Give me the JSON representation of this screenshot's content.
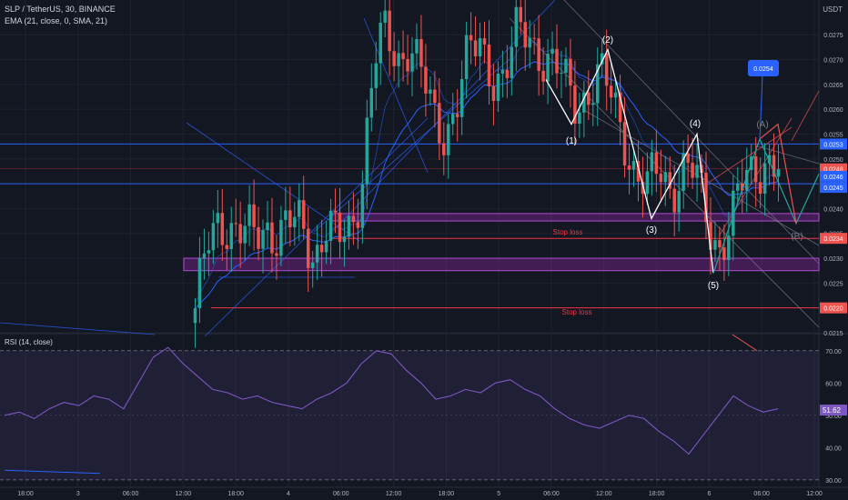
{
  "header": {
    "symbol": "SLP / TetherUS, 30, BINANCE",
    "indicator": "EMA (21, close, 0, SMA, 21)",
    "currency": "USDT"
  },
  "rsi_pane": {
    "label": "RSI (14, close)",
    "value_badge": "51.62",
    "levels": [
      "70.00",
      "60.00",
      "50.00",
      "40.00",
      "30.00"
    ]
  },
  "annotations": {
    "wave_labels": [
      "(1)",
      "(2)",
      "(3)",
      "(4)",
      "(5)",
      "(A)",
      "(B)"
    ],
    "stop_loss_1": "Stop loss",
    "stop_loss_2": "Stop loss",
    "target_badge": "0.0254"
  },
  "colors": {
    "background": "#131722",
    "up": "#26a69a",
    "down": "#ef5350",
    "ema": "#2962ff",
    "zone": "#9c27b0",
    "rsi": "#7e57c2",
    "horizontal_line": "#2962ff",
    "stop_line": "#f23645"
  },
  "chart_data": [
    {
      "type": "candlestick",
      "title": "SLP / TetherUS, 30, BINANCE",
      "ylabel": "USDT",
      "ylim": [
        0.0215,
        0.0282
      ],
      "y_ticks": [
        "0.0275",
        "0.0270",
        "0.0265",
        "0.0260",
        "0.0255",
        "0.0250",
        "0.0245",
        "0.0240",
        "0.0235",
        "0.0230",
        "0.0225",
        "0.0215"
      ],
      "x_ticks": [
        "18:00",
        "3",
        "06:00",
        "12:00",
        "18:00",
        "4",
        "06:00",
        "12:00",
        "18:00",
        "5",
        "06:00",
        "12:00",
        "18:00",
        "6",
        "06:00",
        "12:00"
      ],
      "price_badges": [
        "0.0253",
        "0.0248",
        "0.0246",
        "0.0245",
        "0.0234",
        "0.0220"
      ],
      "levels": {
        "resistance": 0.0253,
        "support": 0.0245,
        "stop_loss_1": 0.0234,
        "stop_loss_2": 0.022
      },
      "zones": [
        [
          0.02375,
          0.0239
        ],
        [
          0.02275,
          0.023
        ]
      ],
      "close_path": [
        0.0217,
        0.0233,
        0.024,
        0.0235,
        0.0233,
        0.0236,
        0.0238,
        0.0233,
        0.0236,
        0.0238,
        0.0231,
        0.0235,
        0.0233,
        0.0237,
        0.0246,
        0.0268,
        0.0275,
        0.0271,
        0.0274,
        0.0266,
        0.0258,
        0.0256,
        0.0262,
        0.027,
        0.0273,
        0.0268,
        0.0266,
        0.0274,
        0.0276,
        0.0272,
        0.0268,
        0.0265,
        0.0262,
        0.0264,
        0.0266,
        0.0262,
        0.0256,
        0.0247,
        0.0243,
        0.0248,
        0.0245,
        0.0248,
        0.0246,
        0.0238,
        0.0233,
        0.0237,
        0.0244,
        0.0248,
        0.0251,
        0.0248
      ],
      "wave_points": [
        {
          "label": "(1)",
          "value": 0.0257
        },
        {
          "label": "(2)",
          "value": 0.0272
        },
        {
          "label": "(3)",
          "value": 0.0238
        },
        {
          "label": "(4)",
          "value": 0.0255
        },
        {
          "label": "(5)",
          "value": 0.0227
        }
      ]
    },
    {
      "type": "line",
      "title": "RSI (14, close)",
      "ylim": [
        28,
        75
      ],
      "y_ticks": [
        70,
        60,
        50,
        40,
        30
      ],
      "last_value": 51.62,
      "values": [
        50,
        51,
        49,
        52,
        54,
        53,
        56,
        55,
        52,
        60,
        68,
        71,
        66,
        62,
        58,
        57,
        55,
        56,
        54,
        53,
        52,
        55,
        57,
        60,
        66,
        70,
        69,
        64,
        60,
        55,
        56,
        58,
        57,
        60,
        61,
        58,
        56,
        52,
        49,
        47,
        46,
        48,
        50,
        49,
        45,
        42,
        38,
        44,
        50,
        56,
        53,
        51,
        52
      ]
    }
  ]
}
